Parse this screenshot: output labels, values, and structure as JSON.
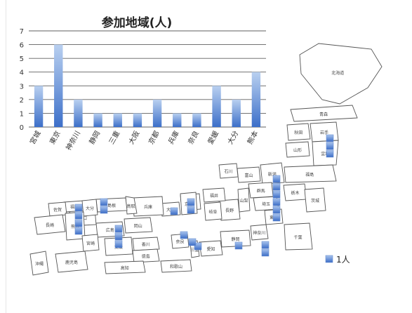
{
  "chart_data": {
    "type": "bar",
    "title": "参加地域(人)",
    "categories": [
      "宮城",
      "東京",
      "神奈川",
      "静岡",
      "三重",
      "大阪",
      "京都",
      "兵庫",
      "奈良",
      "愛媛",
      "大分",
      "熊本"
    ],
    "values": [
      3,
      6,
      2,
      1,
      1,
      1,
      2,
      1,
      1,
      3,
      2,
      4
    ],
    "ylim": [
      0,
      7
    ],
    "yticks": [
      0,
      1,
      2,
      3,
      4,
      5,
      6,
      7
    ],
    "grid": true,
    "bar_color_light": "#b9d0f0",
    "bar_color_dark": "#3c6fc9"
  },
  "map": {
    "regions": [
      {
        "label": "北海道",
        "count": 0
      },
      {
        "label": "青森",
        "count": 0
      },
      {
        "label": "秋田",
        "count": 0
      },
      {
        "label": "岩手",
        "count": 0
      },
      {
        "label": "山形",
        "count": 0
      },
      {
        "label": "宮城",
        "count": 3
      },
      {
        "label": "福島",
        "count": 0
      },
      {
        "label": "新潟",
        "count": 0
      },
      {
        "label": "群馬",
        "count": 0
      },
      {
        "label": "栃木",
        "count": 0
      },
      {
        "label": "茨城",
        "count": 0
      },
      {
        "label": "埼玉",
        "count": 0
      },
      {
        "label": "東京",
        "count": 6
      },
      {
        "label": "千葉",
        "count": 0
      },
      {
        "label": "神奈川",
        "count": 2
      },
      {
        "label": "山梨",
        "count": 0
      },
      {
        "label": "長野",
        "count": 0
      },
      {
        "label": "静岡",
        "count": 1
      },
      {
        "label": "富山",
        "count": 0
      },
      {
        "label": "石川",
        "count": 0
      },
      {
        "label": "福井",
        "count": 0
      },
      {
        "label": "岐阜",
        "count": 0
      },
      {
        "label": "愛知",
        "count": 0
      },
      {
        "label": "三重",
        "count": 1
      },
      {
        "label": "滋賀",
        "count": 0
      },
      {
        "label": "京都",
        "count": 2
      },
      {
        "label": "大阪",
        "count": 1
      },
      {
        "label": "兵庫",
        "count": 1
      },
      {
        "label": "奈良",
        "count": 1
      },
      {
        "label": "和歌山",
        "count": 0
      },
      {
        "label": "鳥取",
        "count": 0
      },
      {
        "label": "島根",
        "count": 0
      },
      {
        "label": "岡山",
        "count": 0
      },
      {
        "label": "広島",
        "count": 0
      },
      {
        "label": "山口",
        "count": 0
      },
      {
        "label": "香川",
        "count": 0
      },
      {
        "label": "徳島",
        "count": 0
      },
      {
        "label": "愛媛",
        "count": 3
      },
      {
        "label": "高知",
        "count": 0
      },
      {
        "label": "福岡",
        "count": 0
      },
      {
        "label": "佐賀",
        "count": 0
      },
      {
        "label": "長崎",
        "count": 0
      },
      {
        "label": "大分",
        "count": 2
      },
      {
        "label": "熊本",
        "count": 4
      },
      {
        "label": "宮崎",
        "count": 0
      },
      {
        "label": "鹿児島",
        "count": 0
      },
      {
        "label": "沖縄",
        "count": 0
      }
    ]
  },
  "legend": {
    "label": "1人"
  }
}
